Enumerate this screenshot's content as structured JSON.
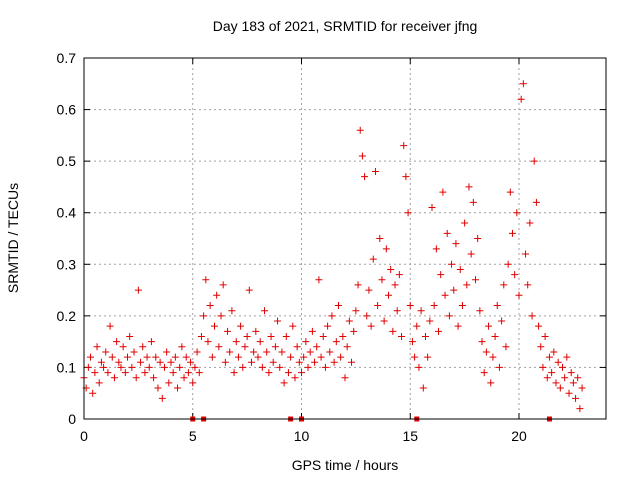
{
  "chart_data": {
    "type": "scatter",
    "title": "Day 183 of 2021, SRMTID for receiver jfng",
    "xlabel": "GPS time / hours",
    "ylabel": "SRMTID / TECUs",
    "xlim": [
      0,
      24
    ],
    "ylim": [
      0,
      0.7
    ],
    "xticks": [
      0,
      5,
      10,
      15,
      20
    ],
    "xtick_labels": [
      "0",
      "5",
      "10",
      "15",
      "20"
    ],
    "yticks": [
      0,
      0.1,
      0.2,
      0.3,
      0.4,
      0.5,
      0.6,
      0.7
    ],
    "ytick_labels": [
      "0",
      "0.1",
      "0.2",
      "0.3",
      "0.4",
      "0.5",
      "0.6",
      "0.7"
    ],
    "grid": true,
    "marker": "+",
    "color": "#e00000",
    "series": [
      {
        "name": "SRMTID",
        "points": [
          [
            0.0,
            0.08
          ],
          [
            0.1,
            0.06
          ],
          [
            0.2,
            0.1
          ],
          [
            0.3,
            0.12
          ],
          [
            0.4,
            0.05
          ],
          [
            0.5,
            0.09
          ],
          [
            0.6,
            0.14
          ],
          [
            0.7,
            0.07
          ],
          [
            0.8,
            0.11
          ],
          [
            0.9,
            0.1
          ],
          [
            1.0,
            0.13
          ],
          [
            1.1,
            0.09
          ],
          [
            1.2,
            0.18
          ],
          [
            1.3,
            0.12
          ],
          [
            1.4,
            0.08
          ],
          [
            1.5,
            0.15
          ],
          [
            1.6,
            0.11
          ],
          [
            1.7,
            0.1
          ],
          [
            1.8,
            0.14
          ],
          [
            1.9,
            0.09
          ],
          [
            2.0,
            0.12
          ],
          [
            2.1,
            0.16
          ],
          [
            2.2,
            0.1
          ],
          [
            2.3,
            0.13
          ],
          [
            2.4,
            0.08
          ],
          [
            2.5,
            0.25
          ],
          [
            2.6,
            0.11
          ],
          [
            2.7,
            0.14
          ],
          [
            2.8,
            0.09
          ],
          [
            2.9,
            0.12
          ],
          [
            3.0,
            0.1
          ],
          [
            3.1,
            0.15
          ],
          [
            3.2,
            0.08
          ],
          [
            3.3,
            0.12
          ],
          [
            3.4,
            0.06
          ],
          [
            3.5,
            0.11
          ],
          [
            3.6,
            0.04
          ],
          [
            3.7,
            0.1
          ],
          [
            3.8,
            0.13
          ],
          [
            3.9,
            0.07
          ],
          [
            4.0,
            0.11
          ],
          [
            4.1,
            0.09
          ],
          [
            4.2,
            0.12
          ],
          [
            4.3,
            0.06
          ],
          [
            4.4,
            0.1
          ],
          [
            4.5,
            0.14
          ],
          [
            4.6,
            0.08
          ],
          [
            4.7,
            0.12
          ],
          [
            4.8,
            0.09
          ],
          [
            4.9,
            0.11
          ],
          [
            5.0,
            0.07
          ],
          [
            5.1,
            0.1
          ],
          [
            5.2,
            0.13
          ],
          [
            5.3,
            0.09
          ],
          [
            5.4,
            0.16
          ],
          [
            5.5,
            0.2
          ],
          [
            5.6,
            0.27
          ],
          [
            5.7,
            0.15
          ],
          [
            5.8,
            0.22
          ],
          [
            5.9,
            0.12
          ],
          [
            6.0,
            0.18
          ],
          [
            6.1,
            0.24
          ],
          [
            6.2,
            0.14
          ],
          [
            6.3,
            0.2
          ],
          [
            6.4,
            0.26
          ],
          [
            6.5,
            0.11
          ],
          [
            6.6,
            0.17
          ],
          [
            6.7,
            0.13
          ],
          [
            6.8,
            0.21
          ],
          [
            6.9,
            0.09
          ],
          [
            7.0,
            0.15
          ],
          [
            7.1,
            0.12
          ],
          [
            7.2,
            0.18
          ],
          [
            7.3,
            0.1
          ],
          [
            7.4,
            0.14
          ],
          [
            7.5,
            0.16
          ],
          [
            7.6,
            0.25
          ],
          [
            7.7,
            0.11
          ],
          [
            7.8,
            0.13
          ],
          [
            7.9,
            0.17
          ],
          [
            8.0,
            0.12
          ],
          [
            8.1,
            0.15
          ],
          [
            8.2,
            0.1
          ],
          [
            8.3,
            0.21
          ],
          [
            8.4,
            0.13
          ],
          [
            8.5,
            0.09
          ],
          [
            8.6,
            0.16
          ],
          [
            8.7,
            0.11
          ],
          [
            8.8,
            0.14
          ],
          [
            8.9,
            0.19
          ],
          [
            9.0,
            0.1
          ],
          [
            9.1,
            0.13
          ],
          [
            9.2,
            0.07
          ],
          [
            9.3,
            0.16
          ],
          [
            9.4,
            0.09
          ],
          [
            9.5,
            0.12
          ],
          [
            9.6,
            0.18
          ],
          [
            9.7,
            0.08
          ],
          [
            9.8,
            0.14
          ],
          [
            9.9,
            0.11
          ],
          [
            10.0,
            0.09
          ],
          [
            10.1,
            0.12
          ],
          [
            10.2,
            0.15
          ],
          [
            10.3,
            0.1
          ],
          [
            10.4,
            0.13
          ],
          [
            10.5,
            0.17
          ],
          [
            10.6,
            0.11
          ],
          [
            10.7,
            0.14
          ],
          [
            10.8,
            0.27
          ],
          [
            10.9,
            0.12
          ],
          [
            11.0,
            0.16
          ],
          [
            11.1,
            0.1
          ],
          [
            11.2,
            0.18
          ],
          [
            11.3,
            0.13
          ],
          [
            11.4,
            0.2
          ],
          [
            11.5,
            0.11
          ],
          [
            11.6,
            0.15
          ],
          [
            11.7,
            0.22
          ],
          [
            11.8,
            0.12
          ],
          [
            11.9,
            0.16
          ],
          [
            12.0,
            0.08
          ],
          [
            12.1,
            0.14
          ],
          [
            12.2,
            0.19
          ],
          [
            12.3,
            0.11
          ],
          [
            12.4,
            0.17
          ],
          [
            12.5,
            0.21
          ],
          [
            12.6,
            0.26
          ],
          [
            12.7,
            0.56
          ],
          [
            12.8,
            0.51
          ],
          [
            12.9,
            0.47
          ],
          [
            13.0,
            0.2
          ],
          [
            13.1,
            0.25
          ],
          [
            13.2,
            0.18
          ],
          [
            13.3,
            0.31
          ],
          [
            13.4,
            0.48
          ],
          [
            13.5,
            0.22
          ],
          [
            13.6,
            0.35
          ],
          [
            13.7,
            0.27
          ],
          [
            13.8,
            0.19
          ],
          [
            13.9,
            0.33
          ],
          [
            14.0,
            0.24
          ],
          [
            14.1,
            0.29
          ],
          [
            14.2,
            0.17
          ],
          [
            14.3,
            0.26
          ],
          [
            14.4,
            0.21
          ],
          [
            14.5,
            0.28
          ],
          [
            14.6,
            0.16
          ],
          [
            14.7,
            0.53
          ],
          [
            14.8,
            0.47
          ],
          [
            14.9,
            0.4
          ],
          [
            15.0,
            0.22
          ],
          [
            15.1,
            0.15
          ],
          [
            15.2,
            0.12
          ],
          [
            15.3,
            0.18
          ],
          [
            15.4,
            0.1
          ],
          [
            15.5,
            0.21
          ],
          [
            15.6,
            0.06
          ],
          [
            15.7,
            0.16
          ],
          [
            15.8,
            0.12
          ],
          [
            15.9,
            0.19
          ],
          [
            16.0,
            0.41
          ],
          [
            16.1,
            0.22
          ],
          [
            16.2,
            0.33
          ],
          [
            16.3,
            0.17
          ],
          [
            16.4,
            0.28
          ],
          [
            16.5,
            0.44
          ],
          [
            16.6,
            0.24
          ],
          [
            16.7,
            0.36
          ],
          [
            16.8,
            0.2
          ],
          [
            16.9,
            0.3
          ],
          [
            17.0,
            0.25
          ],
          [
            17.1,
            0.34
          ],
          [
            17.2,
            0.18
          ],
          [
            17.3,
            0.29
          ],
          [
            17.4,
            0.22
          ],
          [
            17.5,
            0.38
          ],
          [
            17.6,
            0.26
          ],
          [
            17.7,
            0.45
          ],
          [
            17.8,
            0.32
          ],
          [
            17.9,
            0.42
          ],
          [
            18.0,
            0.27
          ],
          [
            18.1,
            0.35
          ],
          [
            18.2,
            0.21
          ],
          [
            18.3,
            0.15
          ],
          [
            18.4,
            0.09
          ],
          [
            18.5,
            0.13
          ],
          [
            18.6,
            0.18
          ],
          [
            18.7,
            0.07
          ],
          [
            18.8,
            0.12
          ],
          [
            18.9,
            0.16
          ],
          [
            19.0,
            0.22
          ],
          [
            19.1,
            0.1
          ],
          [
            19.2,
            0.19
          ],
          [
            19.3,
            0.26
          ],
          [
            19.4,
            0.14
          ],
          [
            19.5,
            0.3
          ],
          [
            19.6,
            0.44
          ],
          [
            19.7,
            0.36
          ],
          [
            19.8,
            0.28
          ],
          [
            19.9,
            0.4
          ],
          [
            20.0,
            0.24
          ],
          [
            20.1,
            0.62
          ],
          [
            20.2,
            0.65
          ],
          [
            20.3,
            0.32
          ],
          [
            20.4,
            0.26
          ],
          [
            20.5,
            0.38
          ],
          [
            20.6,
            0.2
          ],
          [
            20.7,
            0.5
          ],
          [
            20.8,
            0.42
          ],
          [
            20.9,
            0.18
          ],
          [
            21.0,
            0.14
          ],
          [
            21.1,
            0.1
          ],
          [
            21.2,
            0.16
          ],
          [
            21.3,
            0.08
          ],
          [
            21.4,
            0.12
          ],
          [
            21.5,
            0.09
          ],
          [
            21.6,
            0.13
          ],
          [
            21.7,
            0.07
          ],
          [
            21.8,
            0.11
          ],
          [
            21.9,
            0.06
          ],
          [
            22.0,
            0.1
          ],
          [
            22.1,
            0.08
          ],
          [
            22.2,
            0.12
          ],
          [
            22.3,
            0.05
          ],
          [
            22.4,
            0.09
          ],
          [
            22.5,
            0.07
          ],
          [
            22.6,
            0.04
          ],
          [
            22.7,
            0.08
          ],
          [
            22.8,
            0.02
          ],
          [
            22.9,
            0.06
          ]
        ]
      }
    ],
    "gap_markers_x": [
      5.0,
      5.5,
      9.5,
      10.0,
      15.3,
      21.4
    ]
  }
}
